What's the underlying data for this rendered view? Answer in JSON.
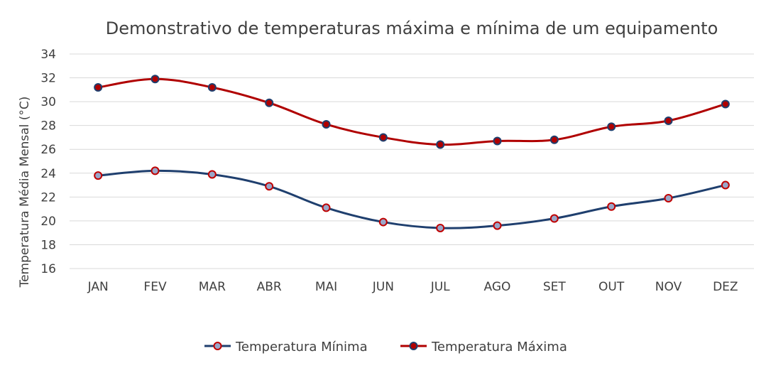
{
  "chart_data": {
    "type": "line",
    "title": "Demonstrativo de temperaturas máxima e mínima de um equipamento",
    "xlabel": "",
    "ylabel": "Temperatura Média Mensal (°C)",
    "categories": [
      "JAN",
      "FEV",
      "MAR",
      "ABR",
      "MAI",
      "JUN",
      "JUL",
      "AGO",
      "SET",
      "OUT",
      "NOV",
      "DEZ"
    ],
    "ylim": [
      16,
      34
    ],
    "yticks": [
      16,
      18,
      20,
      22,
      24,
      26,
      28,
      30,
      32,
      34
    ],
    "grid": true,
    "legend_position": "bottom",
    "series": [
      {
        "name": "Temperatura Mínima",
        "values": [
          23.8,
          24.2,
          23.9,
          22.9,
          21.1,
          19.9,
          19.4,
          19.6,
          20.2,
          21.2,
          21.9,
          23.0
        ],
        "line_color": "#1f3f6e",
        "marker_fill": "#9aa6c8",
        "marker_edge": "#c00000"
      },
      {
        "name": "Temperatura Máxima",
        "values": [
          31.2,
          31.9,
          31.2,
          29.9,
          28.1,
          27.0,
          26.4,
          26.7,
          26.8,
          27.9,
          28.4,
          29.8
        ],
        "line_color": "#b00000",
        "marker_fill": "#b00000",
        "marker_edge": "#1f3f6e"
      }
    ]
  }
}
